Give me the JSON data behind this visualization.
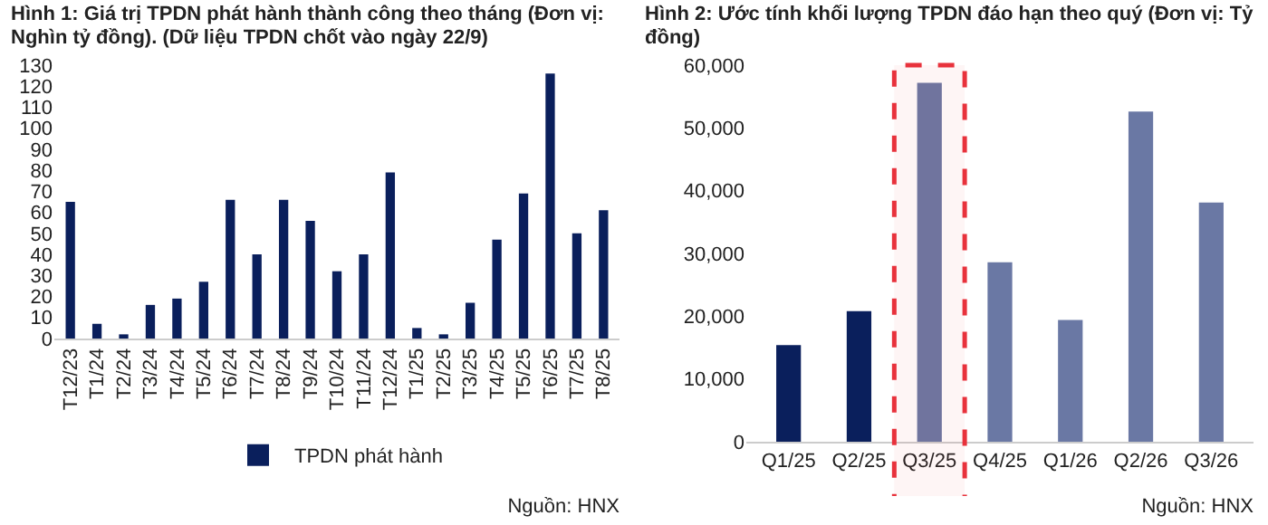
{
  "chart_data": [
    {
      "type": "bar",
      "title": "Hình 1: Giá trị TPDN phát hành thành công theo tháng (Đơn vị: Nghìn tỷ đồng). (Dữ liệu TPDN chốt vào ngày 22/9)",
      "categories": [
        "T12/23",
        "T1/24",
        "T2/24",
        "T3/24",
        "T4/24",
        "T5/24",
        "T6/24",
        "T7/24",
        "T8/24",
        "T9/24",
        "T10/24",
        "T11/24",
        "T12/24",
        "T1/25",
        "T2/25",
        "T3/25",
        "T4/25",
        "T5/25",
        "T6/25",
        "T7/25",
        "T8/25"
      ],
      "series": [
        {
          "name": "TPDN phát hành",
          "color": "#0a1f5c",
          "values": [
            65,
            7,
            2,
            16,
            19,
            27,
            66,
            40,
            66,
            56,
            32,
            40,
            79,
            5,
            2,
            17,
            47,
            69,
            126,
            50,
            61
          ]
        }
      ],
      "ylim": [
        0,
        130
      ],
      "yticks": [
        0,
        10,
        20,
        30,
        40,
        50,
        60,
        70,
        80,
        90,
        100,
        110,
        120,
        130
      ],
      "grid": false,
      "legend": "bottom",
      "annotations": [
        "Nguồn: HNX"
      ]
    },
    {
      "type": "bar",
      "title": "Hình 2: Ước tính khối lượng TPDN đáo hạn theo quý (Đơn vị: Tỷ đồng)",
      "categories": [
        "Q1/25",
        "Q2/25",
        "Q3/25",
        "Q4/25",
        "Q1/26",
        "Q2/26",
        "Q3/26"
      ],
      "values": [
        15400,
        20800,
        57200,
        28600,
        19400,
        52600,
        38100
      ],
      "colors": [
        "#0a1f5c",
        "#0a1f5c",
        "#6a78a4",
        "#6a78a4",
        "#6a78a4",
        "#6a78a4",
        "#6a78a4"
      ],
      "ylim": [
        0,
        60000
      ],
      "yticks": [
        0,
        {
          "value": 10000,
          "label": "10,000"
        },
        {
          "value": 20000,
          "label": "20,000"
        },
        {
          "value": 30000,
          "label": "30,000"
        },
        {
          "value": 40000,
          "label": "40,000"
        },
        {
          "value": 50000,
          "label": "50,000"
        },
        {
          "value": 60000,
          "label": "60,000"
        }
      ],
      "grid": false,
      "bands": [
        {
          "axis": "x",
          "from": "Q3/25",
          "to": "Q3/25",
          "color": "#e8323c"
        }
      ],
      "annotations": [
        "Nguồn: HNX"
      ]
    }
  ]
}
